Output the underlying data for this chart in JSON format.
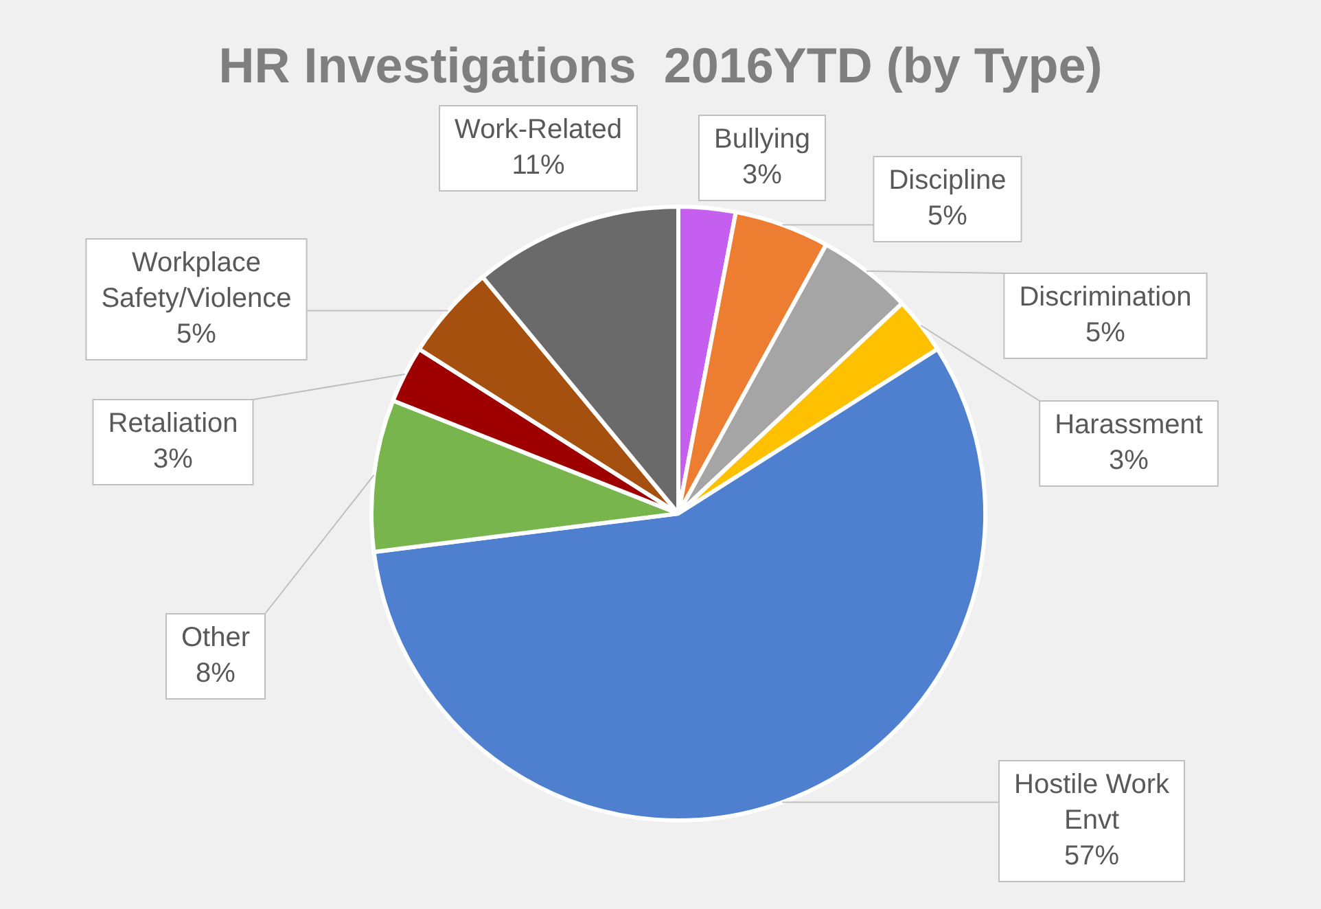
{
  "chart_data": {
    "type": "pie",
    "title": "HR Investigations  2016YTD (by Type)",
    "categories": [
      "Bullying",
      "Discipline",
      "Discrimination",
      "Harassment",
      "Hostile Work Envt",
      "Other",
      "Retaliation",
      "Workplace Safety/Violence",
      "Work-Related"
    ],
    "values": [
      3,
      5,
      5,
      3,
      57,
      8,
      3,
      5,
      11
    ],
    "value_labels": [
      "3%",
      "5%",
      "5%",
      "3%",
      "57%",
      "8%",
      "3%",
      "5%",
      "11%"
    ],
    "colors": [
      "#c55ff0",
      "#ed7d31",
      "#a5a5a5",
      "#ffc000",
      "#4f7fcf",
      "#78b54c",
      "#9e0000",
      "#a5500f",
      "#6a6a6a"
    ],
    "legend": false
  }
}
